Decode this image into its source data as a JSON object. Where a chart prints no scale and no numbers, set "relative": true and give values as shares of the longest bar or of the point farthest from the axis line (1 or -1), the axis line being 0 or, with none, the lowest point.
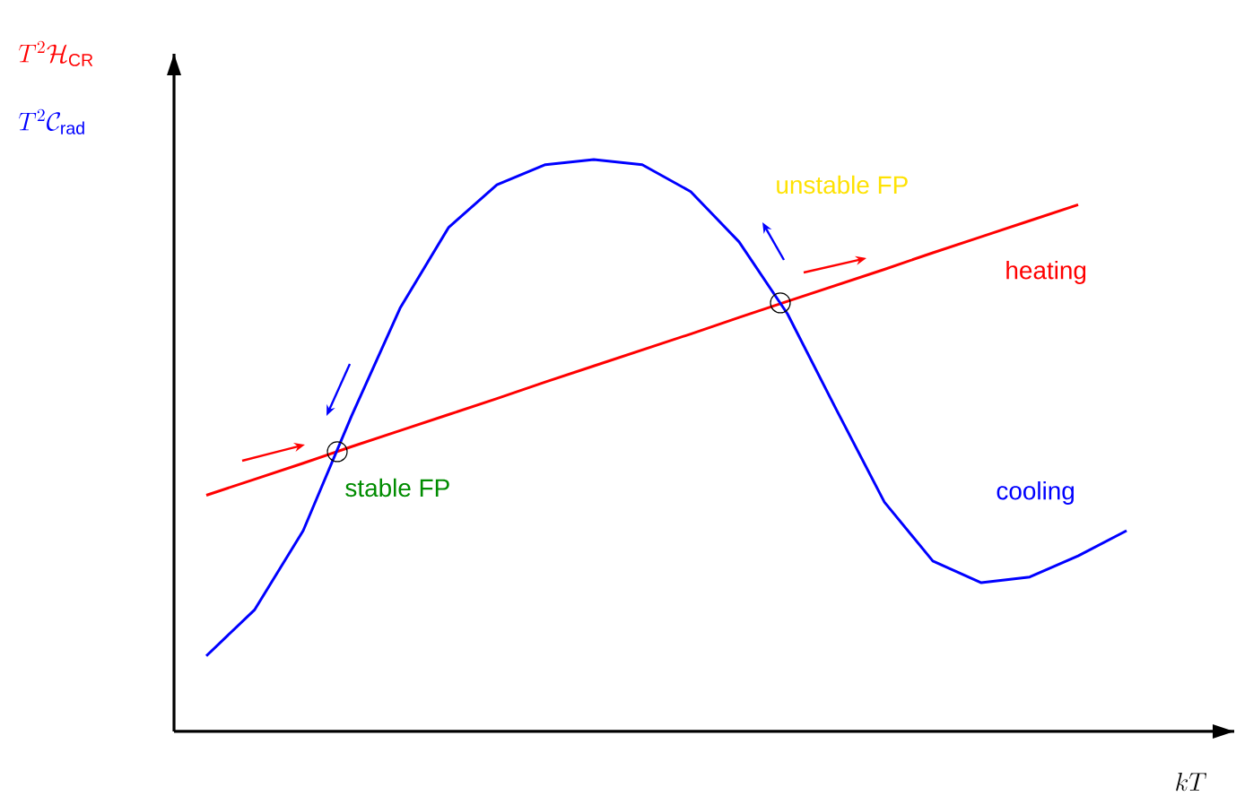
{
  "chart_data": {
    "type": "line",
    "relative": true,
    "xlabel": "kT",
    "categories": [
      null,
      null,
      null,
      null,
      null,
      null,
      null,
      null,
      null,
      null,
      null,
      null,
      null,
      null,
      null,
      null,
      null,
      null,
      null,
      null
    ],
    "series": [
      {
        "name": "heating",
        "color": "#ff0000",
        "values": [
          0.413,
          0.441,
          0.469,
          0.498,
          0.526,
          0.554,
          0.582,
          0.611,
          0.639,
          0.667,
          0.695,
          0.724,
          0.752,
          0.78,
          0.808,
          0.837,
          0.865,
          0.893,
          0.921,
          null
        ]
      },
      {
        "name": "cooling",
        "color": "#0000ff",
        "values": [
          0.132,
          0.213,
          0.351,
          0.552,
          0.74,
          0.881,
          0.956,
          0.991,
          1.0,
          0.991,
          0.944,
          0.856,
          0.73,
          0.564,
          0.401,
          0.298,
          0.26,
          0.27,
          0.307,
          0.351
        ]
      }
    ],
    "annotations": [
      "T^2\\mathcal{H}_{\\mathrm{CR}}",
      "T^2\\mathcal{C}_{\\mathrm{rad}}",
      "stable FP",
      "unstable FP"
    ]
  }
}
